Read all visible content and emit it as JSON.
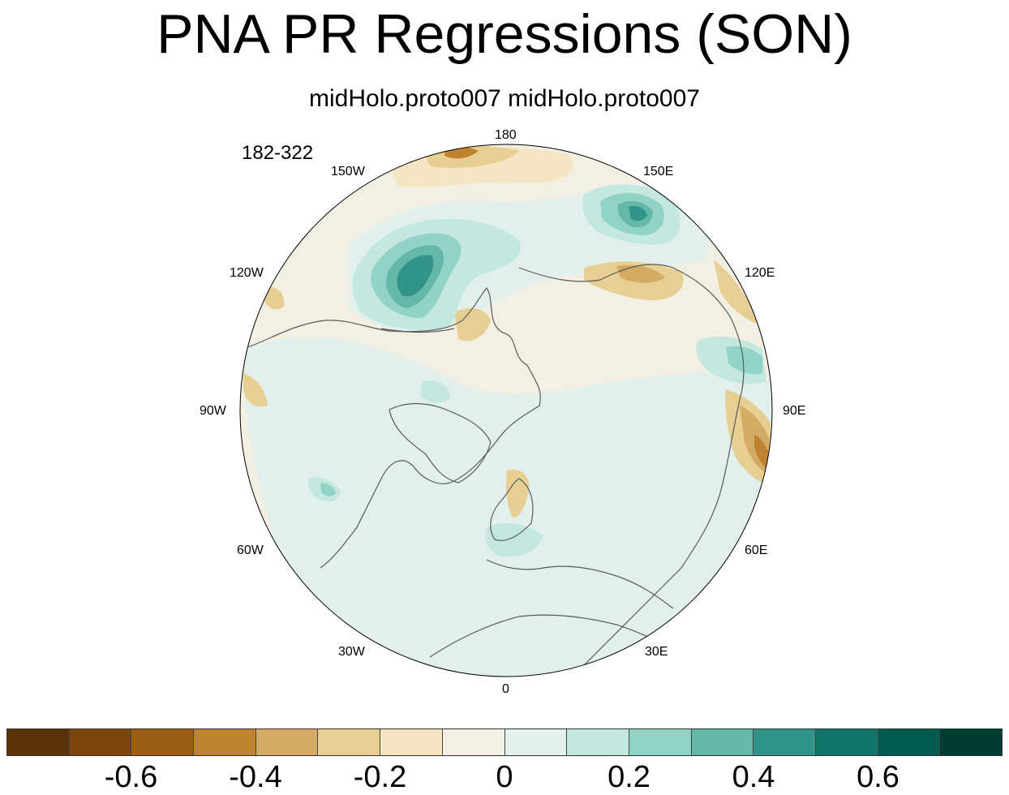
{
  "title": "PNA PR Regressions (SON)",
  "subtitle": "midHolo.proto007  midHolo.proto007",
  "years": "182-322",
  "lon_labels": {
    "l180": "180",
    "l150e": "150E",
    "l120e": "120E",
    "l90e": "90E",
    "l60e": "60E",
    "l30e": "30E",
    "l0": "0",
    "l30w": "30W",
    "l60w": "60W",
    "l90w": "90W",
    "l120w": "120W",
    "l150w": "150W"
  },
  "colorbar": {
    "colors": [
      "#5a3309",
      "#7b450c",
      "#9c5d17",
      "#bf822f",
      "#d4ab64",
      "#e7cf94",
      "#f4e6c3",
      "#f4efe3",
      "#e2f0ed",
      "#c4e8e0",
      "#92d3c7",
      "#63b8aa",
      "#329388",
      "#117568",
      "#005a4d",
      "#003c31"
    ],
    "tick_labels": [
      "-0.6",
      "-0.4",
      "-0.2",
      "0",
      "0.2",
      "0.4",
      "0.6"
    ]
  },
  "palette": {
    "background": "#f4efe3",
    "coast": "#5a5a5a"
  }
}
